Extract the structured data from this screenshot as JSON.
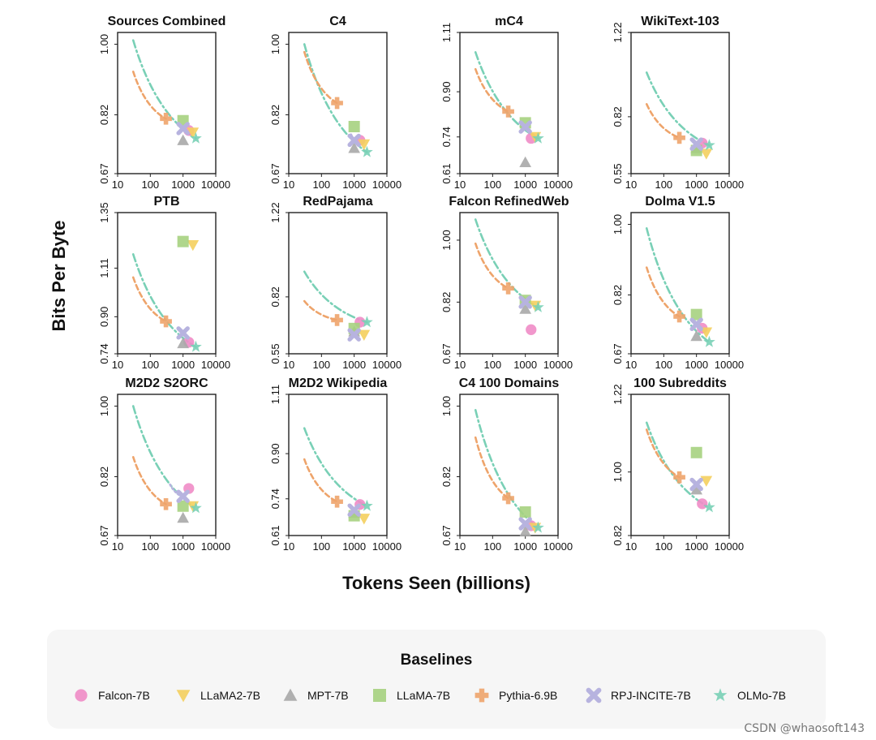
{
  "ylabel": "Bits Per Byte",
  "xlabel": "Tokens Seen (billions)",
  "legend_title": "Baselines",
  "watermark": "CSDN @whaosoft143",
  "chart_data": {
    "type": "scatter",
    "xscale": "log",
    "xlim": [
      10,
      10000
    ],
    "xticks": [
      "10",
      "100",
      "1000",
      "10000"
    ],
    "models": [
      {
        "name": "Falcon-7B",
        "marker": "circle",
        "color": "#f08cc6"
      },
      {
        "name": "LLaMA2-7B",
        "marker": "triangle-down",
        "color": "#f4cf5e"
      },
      {
        "name": "MPT-7B",
        "marker": "triangle-up",
        "color": "#a8a8a8"
      },
      {
        "name": "LLaMA-7B",
        "marker": "square",
        "color": "#a6d27f"
      },
      {
        "name": "Pythia-6.9B",
        "marker": "plus",
        "color": "#eea46b"
      },
      {
        "name": "RPJ-INCITE-7B",
        "marker": "x",
        "color": "#b7b3df"
      },
      {
        "name": "OLMo-7B",
        "marker": "star",
        "color": "#79d0b6"
      }
    ],
    "panels": [
      {
        "title": "Sources Combined",
        "ylim": [
          0.67,
          1.03
        ],
        "yticks": [
          "0.67",
          "0.82",
          "1.00"
        ],
        "points": {
          "Falcon-7B": [
            1500,
            0.78
          ],
          "LLaMA2-7B": [
            2000,
            0.775
          ],
          "MPT-7B": [
            1000,
            0.755
          ],
          "LLaMA-7B": [
            1000,
            0.805
          ],
          "Pythia-6.9B": [
            300,
            0.81
          ],
          "RPJ-INCITE-7B": [
            1000,
            0.785
          ],
          "OLMo-7B": [
            2460,
            0.76
          ]
        },
        "pythia_curve": [
          [
            30,
            0.93
          ],
          [
            300,
            0.81
          ]
        ],
        "rpj_curve": [
          [
            800,
            0.795
          ],
          [
            1200,
            0.785
          ]
        ],
        "olmo_curve": [
          [
            30,
            1.01
          ],
          [
            2460,
            0.76
          ]
        ]
      },
      {
        "title": "C4",
        "ylim": [
          0.67,
          1.03
        ],
        "yticks": [
          "0.67",
          "0.82",
          "1.00"
        ],
        "points": {
          "Falcon-7B": [
            1500,
            0.755
          ],
          "LLaMA2-7B": [
            2000,
            0.745
          ],
          "MPT-7B": [
            1000,
            0.735
          ],
          "LLaMA-7B": [
            1000,
            0.79
          ],
          "Pythia-6.9B": [
            300,
            0.85
          ],
          "RPJ-INCITE-7B": [
            1000,
            0.755
          ],
          "OLMo-7B": [
            2460,
            0.725
          ]
        },
        "pythia_curve": [
          [
            30,
            0.98
          ],
          [
            300,
            0.85
          ]
        ],
        "rpj_curve": [
          [
            800,
            0.77
          ],
          [
            1200,
            0.755
          ]
        ],
        "olmo_curve": [
          [
            30,
            1.0
          ],
          [
            2460,
            0.725
          ]
        ]
      },
      {
        "title": "mC4",
        "ylim": [
          0.61,
          1.11
        ],
        "yticks": [
          "0.61",
          "0.74",
          "0.90",
          "1.11"
        ],
        "points": {
          "Falcon-7B": [
            1500,
            0.735
          ],
          "LLaMA2-7B": [
            2000,
            0.74
          ],
          "MPT-7B": [
            1000,
            0.65
          ],
          "LLaMA-7B": [
            1000,
            0.79
          ],
          "Pythia-6.9B": [
            300,
            0.83
          ],
          "RPJ-INCITE-7B": [
            1000,
            0.775
          ],
          "OLMo-7B": [
            2460,
            0.735
          ]
        },
        "pythia_curve": [
          [
            30,
            0.98
          ],
          [
            300,
            0.83
          ]
        ],
        "rpj_curve": [
          [
            800,
            0.785
          ],
          [
            1200,
            0.77
          ]
        ],
        "olmo_curve": [
          [
            30,
            1.04
          ],
          [
            2460,
            0.735
          ]
        ]
      },
      {
        "title": "WikiText-103",
        "ylim": [
          0.55,
          1.22
        ],
        "yticks": [
          "0.55",
          "0.82",
          "1.22"
        ],
        "points": {
          "Falcon-7B": [
            1500,
            0.695
          ],
          "LLaMA2-7B": [
            2000,
            0.645
          ],
          "MPT-7B": [
            1000,
            0.67
          ],
          "LLaMA-7B": [
            1000,
            0.66
          ],
          "Pythia-6.9B": [
            300,
            0.72
          ],
          "RPJ-INCITE-7B": [
            1000,
            0.69
          ],
          "OLMo-7B": [
            2460,
            0.685
          ]
        },
        "pythia_curve": [
          [
            30,
            0.88
          ],
          [
            300,
            0.72
          ]
        ],
        "rpj_curve": [
          [
            800,
            0.7
          ],
          [
            1200,
            0.69
          ]
        ],
        "olmo_curve": [
          [
            30,
            1.03
          ],
          [
            2460,
            0.685
          ]
        ]
      },
      {
        "title": "PTB",
        "ylim": [
          0.74,
          1.35
        ],
        "yticks": [
          "0.74",
          "0.90",
          "1.11",
          "1.35"
        ],
        "points": {
          "Falcon-7B": [
            1500,
            0.79
          ],
          "LLaMA2-7B": [
            2000,
            1.21
          ],
          "MPT-7B": [
            1000,
            0.785
          ],
          "LLaMA-7B": [
            1000,
            1.225
          ],
          "Pythia-6.9B": [
            300,
            0.88
          ],
          "RPJ-INCITE-7B": [
            1000,
            0.83
          ],
          "OLMo-7B": [
            2460,
            0.77
          ]
        },
        "pythia_curve": [
          [
            30,
            1.07
          ],
          [
            300,
            0.88
          ]
        ],
        "rpj_curve": [
          [
            800,
            0.84
          ],
          [
            1200,
            0.825
          ]
        ],
        "olmo_curve": [
          [
            30,
            1.17
          ],
          [
            2460,
            0.77
          ]
        ]
      },
      {
        "title": "RedPajama",
        "ylim": [
          0.55,
          1.22
        ],
        "yticks": [
          "0.55",
          "0.82",
          "1.22"
        ],
        "points": {
          "Falcon-7B": [
            1500,
            0.7
          ],
          "LLaMA2-7B": [
            2000,
            0.64
          ],
          "MPT-7B": [
            1000,
            0.655
          ],
          "LLaMA-7B": [
            1000,
            0.67
          ],
          "Pythia-6.9B": [
            300,
            0.71
          ],
          "RPJ-INCITE-7B": [
            1000,
            0.64
          ],
          "OLMo-7B": [
            2460,
            0.7
          ]
        },
        "pythia_curve": [
          [
            30,
            0.8
          ],
          [
            300,
            0.71
          ]
        ],
        "rpj_curve": [
          [
            800,
            0.65
          ],
          [
            1200,
            0.64
          ]
        ],
        "olmo_curve": [
          [
            30,
            0.94
          ],
          [
            2460,
            0.7
          ]
        ]
      },
      {
        "title": "Falcon RefinedWeb",
        "ylim": [
          0.67,
          1.08
        ],
        "yticks": [
          "0.67",
          "0.82",
          "1.00"
        ],
        "points": {
          "Falcon-7B": [
            1500,
            0.74
          ],
          "LLaMA2-7B": [
            2000,
            0.81
          ],
          "MPT-7B": [
            1000,
            0.8
          ],
          "LLaMA-7B": [
            1000,
            0.825
          ],
          "Pythia-6.9B": [
            300,
            0.86
          ],
          "RPJ-INCITE-7B": [
            1000,
            0.82
          ],
          "OLMo-7B": [
            2460,
            0.805
          ]
        },
        "pythia_curve": [
          [
            30,
            0.99
          ],
          [
            300,
            0.86
          ]
        ],
        "rpj_curve": [
          [
            800,
            0.83
          ],
          [
            1200,
            0.815
          ]
        ],
        "olmo_curve": [
          [
            30,
            1.06
          ],
          [
            2460,
            0.805
          ]
        ]
      },
      {
        "title": "Dolma V1.5",
        "ylim": [
          0.67,
          1.03
        ],
        "yticks": [
          "0.67",
          "0.82",
          "1.00"
        ],
        "points": {
          "Falcon-7B": [
            1500,
            0.735
          ],
          "LLaMA2-7B": [
            2000,
            0.725
          ],
          "MPT-7B": [
            1000,
            0.715
          ],
          "LLaMA-7B": [
            1000,
            0.77
          ],
          "Pythia-6.9B": [
            300,
            0.765
          ],
          "RPJ-INCITE-7B": [
            1000,
            0.745
          ],
          "OLMo-7B": [
            2460,
            0.7
          ]
        },
        "pythia_curve": [
          [
            30,
            0.89
          ],
          [
            300,
            0.765
          ]
        ],
        "rpj_curve": [
          [
            800,
            0.755
          ],
          [
            1200,
            0.745
          ]
        ],
        "olmo_curve": [
          [
            30,
            0.99
          ],
          [
            2460,
            0.7
          ]
        ]
      },
      {
        "title": "M2D2 S2ORC",
        "ylim": [
          0.67,
          1.03
        ],
        "yticks": [
          "0.67",
          "0.82",
          "1.00"
        ],
        "points": {
          "Falcon-7B": [
            1500,
            0.79
          ],
          "LLaMA2-7B": [
            2000,
            0.745
          ],
          "MPT-7B": [
            1000,
            0.715
          ],
          "LLaMA-7B": [
            1000,
            0.745
          ],
          "Pythia-6.9B": [
            300,
            0.75
          ],
          "RPJ-INCITE-7B": [
            1000,
            0.77
          ],
          "OLMo-7B": [
            2460,
            0.74
          ]
        },
        "pythia_curve": [
          [
            30,
            0.87
          ],
          [
            300,
            0.75
          ]
        ],
        "rpj_curve": [
          [
            400,
            0.8
          ],
          [
            1200,
            0.765
          ]
        ],
        "olmo_curve": [
          [
            30,
            1.0
          ],
          [
            2460,
            0.74
          ]
        ]
      },
      {
        "title": "M2D2 Wikipedia",
        "ylim": [
          0.61,
          1.11
        ],
        "yticks": [
          "0.61",
          "0.74",
          "0.90",
          "1.11"
        ],
        "points": {
          "Falcon-7B": [
            1500,
            0.72
          ],
          "LLaMA2-7B": [
            2000,
            0.67
          ],
          "MPT-7B": [
            1000,
            0.69
          ],
          "LLaMA-7B": [
            1000,
            0.68
          ],
          "Pythia-6.9B": [
            300,
            0.73
          ],
          "RPJ-INCITE-7B": [
            1000,
            0.7
          ],
          "OLMo-7B": [
            2460,
            0.715
          ]
        },
        "pythia_curve": [
          [
            30,
            0.88
          ],
          [
            300,
            0.73
          ]
        ],
        "rpj_curve": [
          [
            800,
            0.71
          ],
          [
            1200,
            0.7
          ]
        ],
        "olmo_curve": [
          [
            30,
            0.99
          ],
          [
            2460,
            0.715
          ]
        ]
      },
      {
        "title": "C4 100 Domains",
        "ylim": [
          0.67,
          1.03
        ],
        "yticks": [
          "0.67",
          "0.82",
          "1.00"
        ],
        "points": {
          "Falcon-7B": [
            1500,
            0.695
          ],
          "LLaMA2-7B": [
            2000,
            0.69
          ],
          "MPT-7B": [
            1000,
            0.68
          ],
          "LLaMA-7B": [
            1000,
            0.73
          ],
          "Pythia-6.9B": [
            300,
            0.765
          ],
          "RPJ-INCITE-7B": [
            1000,
            0.7
          ],
          "OLMo-7B": [
            2460,
            0.69
          ]
        },
        "pythia_curve": [
          [
            30,
            0.92
          ],
          [
            300,
            0.765
          ]
        ],
        "rpj_curve": [
          [
            800,
            0.71
          ],
          [
            1200,
            0.7
          ]
        ],
        "olmo_curve": [
          [
            30,
            0.99
          ],
          [
            2460,
            0.69
          ]
        ]
      },
      {
        "title": "100 Subreddits",
        "ylim": [
          0.82,
          1.22
        ],
        "yticks": [
          "0.82",
          "1.00",
          "1.22"
        ],
        "points": {
          "Falcon-7B": [
            1500,
            0.91
          ],
          "LLaMA2-7B": [
            2000,
            0.975
          ],
          "MPT-7B": [
            1000,
            0.95
          ],
          "LLaMA-7B": [
            1000,
            1.055
          ],
          "Pythia-6.9B": [
            300,
            0.985
          ],
          "RPJ-INCITE-7B": [
            1000,
            0.965
          ],
          "OLMo-7B": [
            2460,
            0.9
          ]
        },
        "pythia_curve": [
          [
            30,
            1.12
          ],
          [
            300,
            0.985
          ]
        ],
        "rpj_curve": [
          [
            800,
            0.975
          ],
          [
            1200,
            0.96
          ]
        ],
        "olmo_curve": [
          [
            30,
            1.14
          ],
          [
            2460,
            0.9
          ]
        ]
      }
    ]
  }
}
